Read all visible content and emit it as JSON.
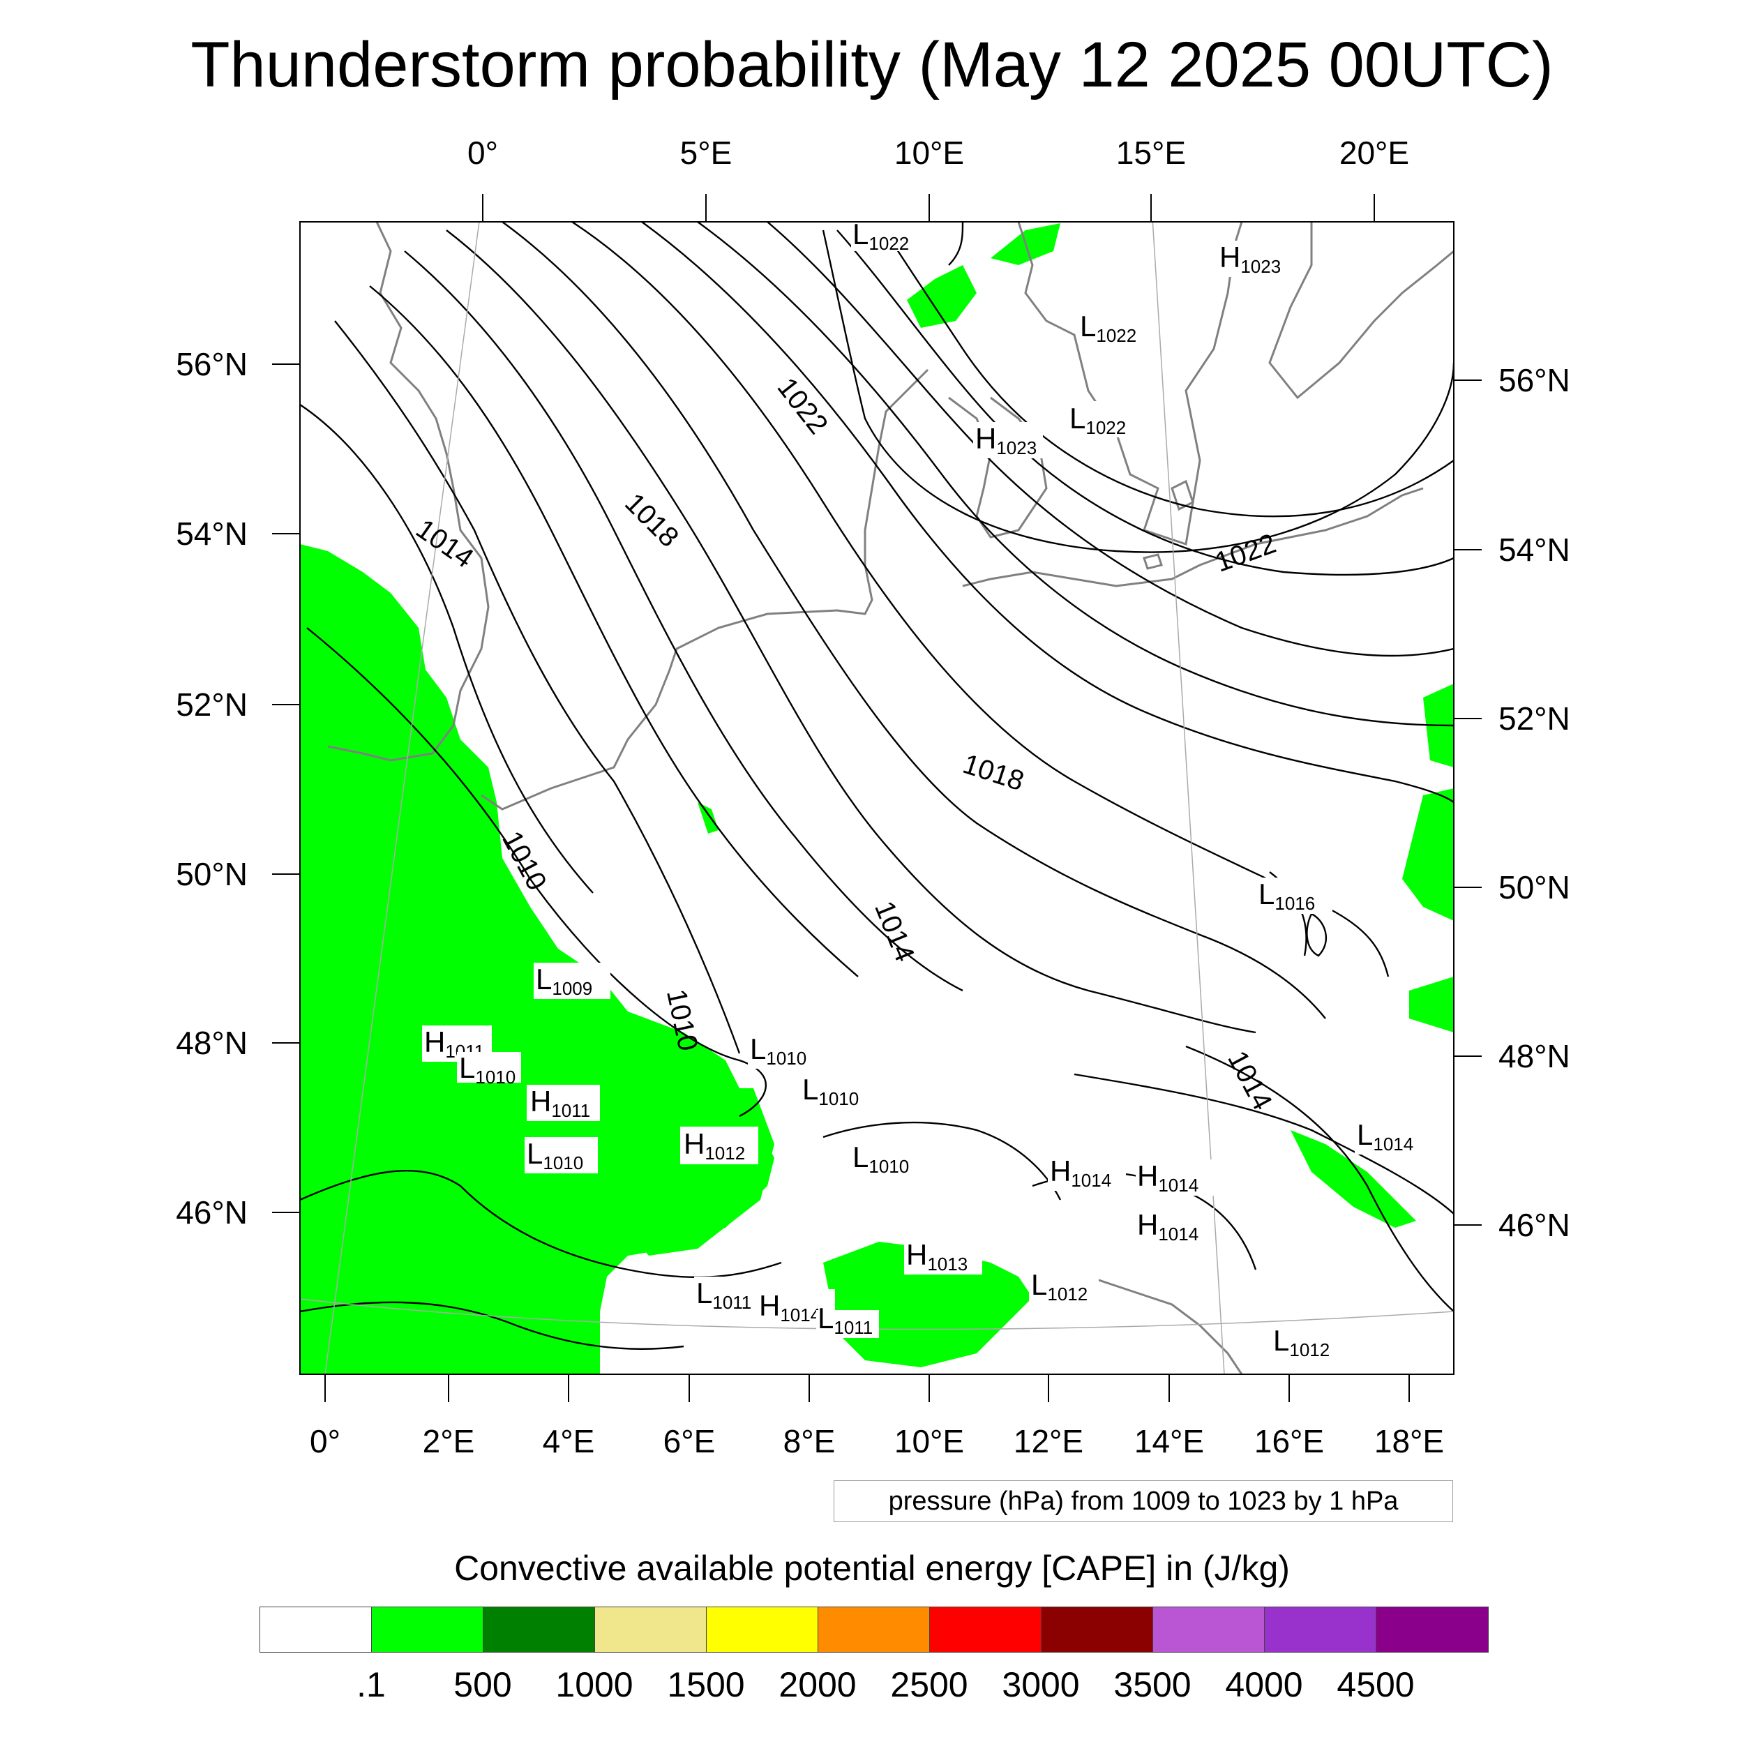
{
  "title": "Thunderstorm probability (May 12 2025 00UTC)",
  "top_lon_labels": [
    "0°",
    "5°E",
    "10°E",
    "15°E",
    "20°E"
  ],
  "bottom_lon_labels": [
    "0°",
    "2°E",
    "4°E",
    "6°E",
    "8°E",
    "10°E",
    "12°E",
    "14°E",
    "16°E",
    "18°E"
  ],
  "left_lat_labels": [
    "56°N",
    "54°N",
    "52°N",
    "50°N",
    "48°N",
    "46°N"
  ],
  "right_lat_labels": [
    "56°N",
    "54°N",
    "52°N",
    "50°N",
    "48°N",
    "46°N"
  ],
  "contour_labels": [
    "1022",
    "1018",
    "1014",
    "1018",
    "1022",
    "1010",
    "1014",
    "1010",
    "1014"
  ],
  "pressure_centers": [
    {
      "type": "L",
      "value": "1022"
    },
    {
      "type": "H",
      "value": "1023"
    },
    {
      "type": "L",
      "value": "1022"
    },
    {
      "type": "L",
      "value": "1022"
    },
    {
      "type": "H",
      "value": "1023"
    },
    {
      "type": "L",
      "value": "1016"
    },
    {
      "type": "L",
      "value": "1009"
    },
    {
      "type": "H",
      "value": "1011"
    },
    {
      "type": "L",
      "value": "1010"
    },
    {
      "type": "H",
      "value": "1011"
    },
    {
      "type": "L",
      "value": "1010"
    },
    {
      "type": "H",
      "value": "1012"
    },
    {
      "type": "L",
      "value": "1010"
    },
    {
      "type": "L",
      "value": "1010"
    },
    {
      "type": "L",
      "value": "1010"
    },
    {
      "type": "H",
      "value": "1014"
    },
    {
      "type": "H",
      "value": "1014"
    },
    {
      "type": "H",
      "value": "1014"
    },
    {
      "type": "L",
      "value": "1014"
    },
    {
      "type": "H",
      "value": "1013"
    },
    {
      "type": "L",
      "value": "1012"
    },
    {
      "type": "L",
      "value": "1011"
    },
    {
      "type": "H",
      "value": "1014"
    },
    {
      "type": "L",
      "value": "1011"
    },
    {
      "type": "L",
      "value": "1012"
    }
  ],
  "contour_note": "pressure (hPa) from 1009 to 1023 by 1 hPa",
  "colorbar": {
    "title": "Convective available potential energy [CAPE] in (J/kg)",
    "colors": [
      "#ffffff",
      "#00ff00",
      "#008000",
      "#f0e68c",
      "#ffff00",
      "#ff8c00",
      "#ff0000",
      "#8b0000",
      "#ba55d3",
      "#9932cc",
      "#8b008b"
    ],
    "ticks": [
      ".1",
      "500",
      "1000",
      "1500",
      "2000",
      "2500",
      "3000",
      "3500",
      "4000",
      "4500"
    ]
  },
  "colors": {
    "cape_low": "#00ff00",
    "coast": "#808080",
    "isobar": "#000000"
  }
}
